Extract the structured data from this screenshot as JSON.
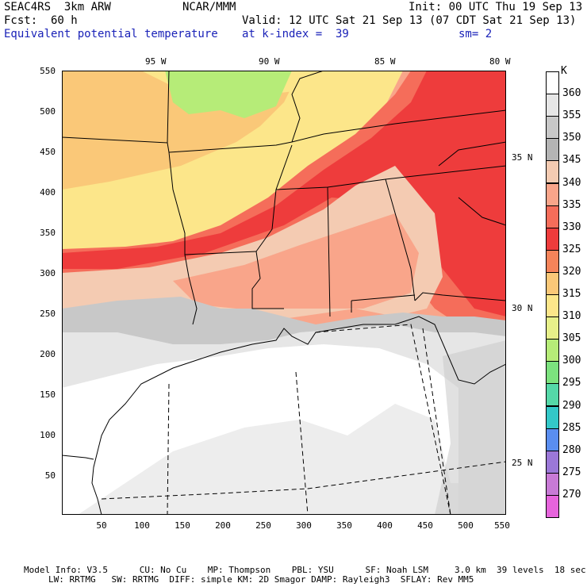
{
  "header": {
    "model": "SEAC4RS  3km ARW",
    "org": "NCAR/MMM",
    "init": "Init: 00 UTC Thu 19 Sep 13",
    "fcst": "Fcst:  60 h",
    "valid": "Valid: 12 UTC Sat 21 Sep 13 (07 CDT Sat 21 Sep 13)",
    "field": "Equivalent potential temperature",
    "level": "at k-index =  39",
    "smooth": "sm= 2"
  },
  "axes": {
    "x_ticks": [
      "50",
      "100",
      "150",
      "200",
      "250",
      "300",
      "350",
      "400",
      "450",
      "500",
      "550"
    ],
    "y_ticks": [
      "550",
      "500",
      "450",
      "400",
      "350",
      "300",
      "250",
      "200",
      "150",
      "100",
      "50"
    ],
    "lon_labels": [
      "95 W",
      "90 W",
      "85 W",
      "80 W"
    ],
    "lat_labels": [
      "35 N",
      "30 N",
      "25 N"
    ]
  },
  "colorbar": {
    "unit": "K",
    "levels": [
      "360",
      "355",
      "350",
      "345",
      "340",
      "335",
      "330",
      "325",
      "320",
      "315",
      "310",
      "305",
      "300",
      "295",
      "290",
      "285",
      "280",
      "275",
      "270"
    ],
    "colors": [
      "#ffffff",
      "#e6e6e6",
      "#c8c8c8",
      "#b4b4b4",
      "#f4cbb2",
      "#f9a58a",
      "#f56d5a",
      "#ee3c3c",
      "#f5845a",
      "#fac878",
      "#fce68a",
      "#e7f08a",
      "#b6ec78",
      "#7ce27e",
      "#55d8a8",
      "#33c8c8",
      "#5a8ef0",
      "#9b78d8",
      "#c87ad6",
      "#e664dc"
    ]
  },
  "footer": {
    "line1": "Model Info: V3.5      CU: No Cu    MP: Thompson    PBL: YSU      SF: Noah LSM     3.0 km  39 levels  18 sec",
    "line2": "LW: RRTMG   SW: RRTMG  DIFF: simple KM: 2D Smagor DAMP: Rayleigh3  SFLAY: Rev MM5"
  }
}
